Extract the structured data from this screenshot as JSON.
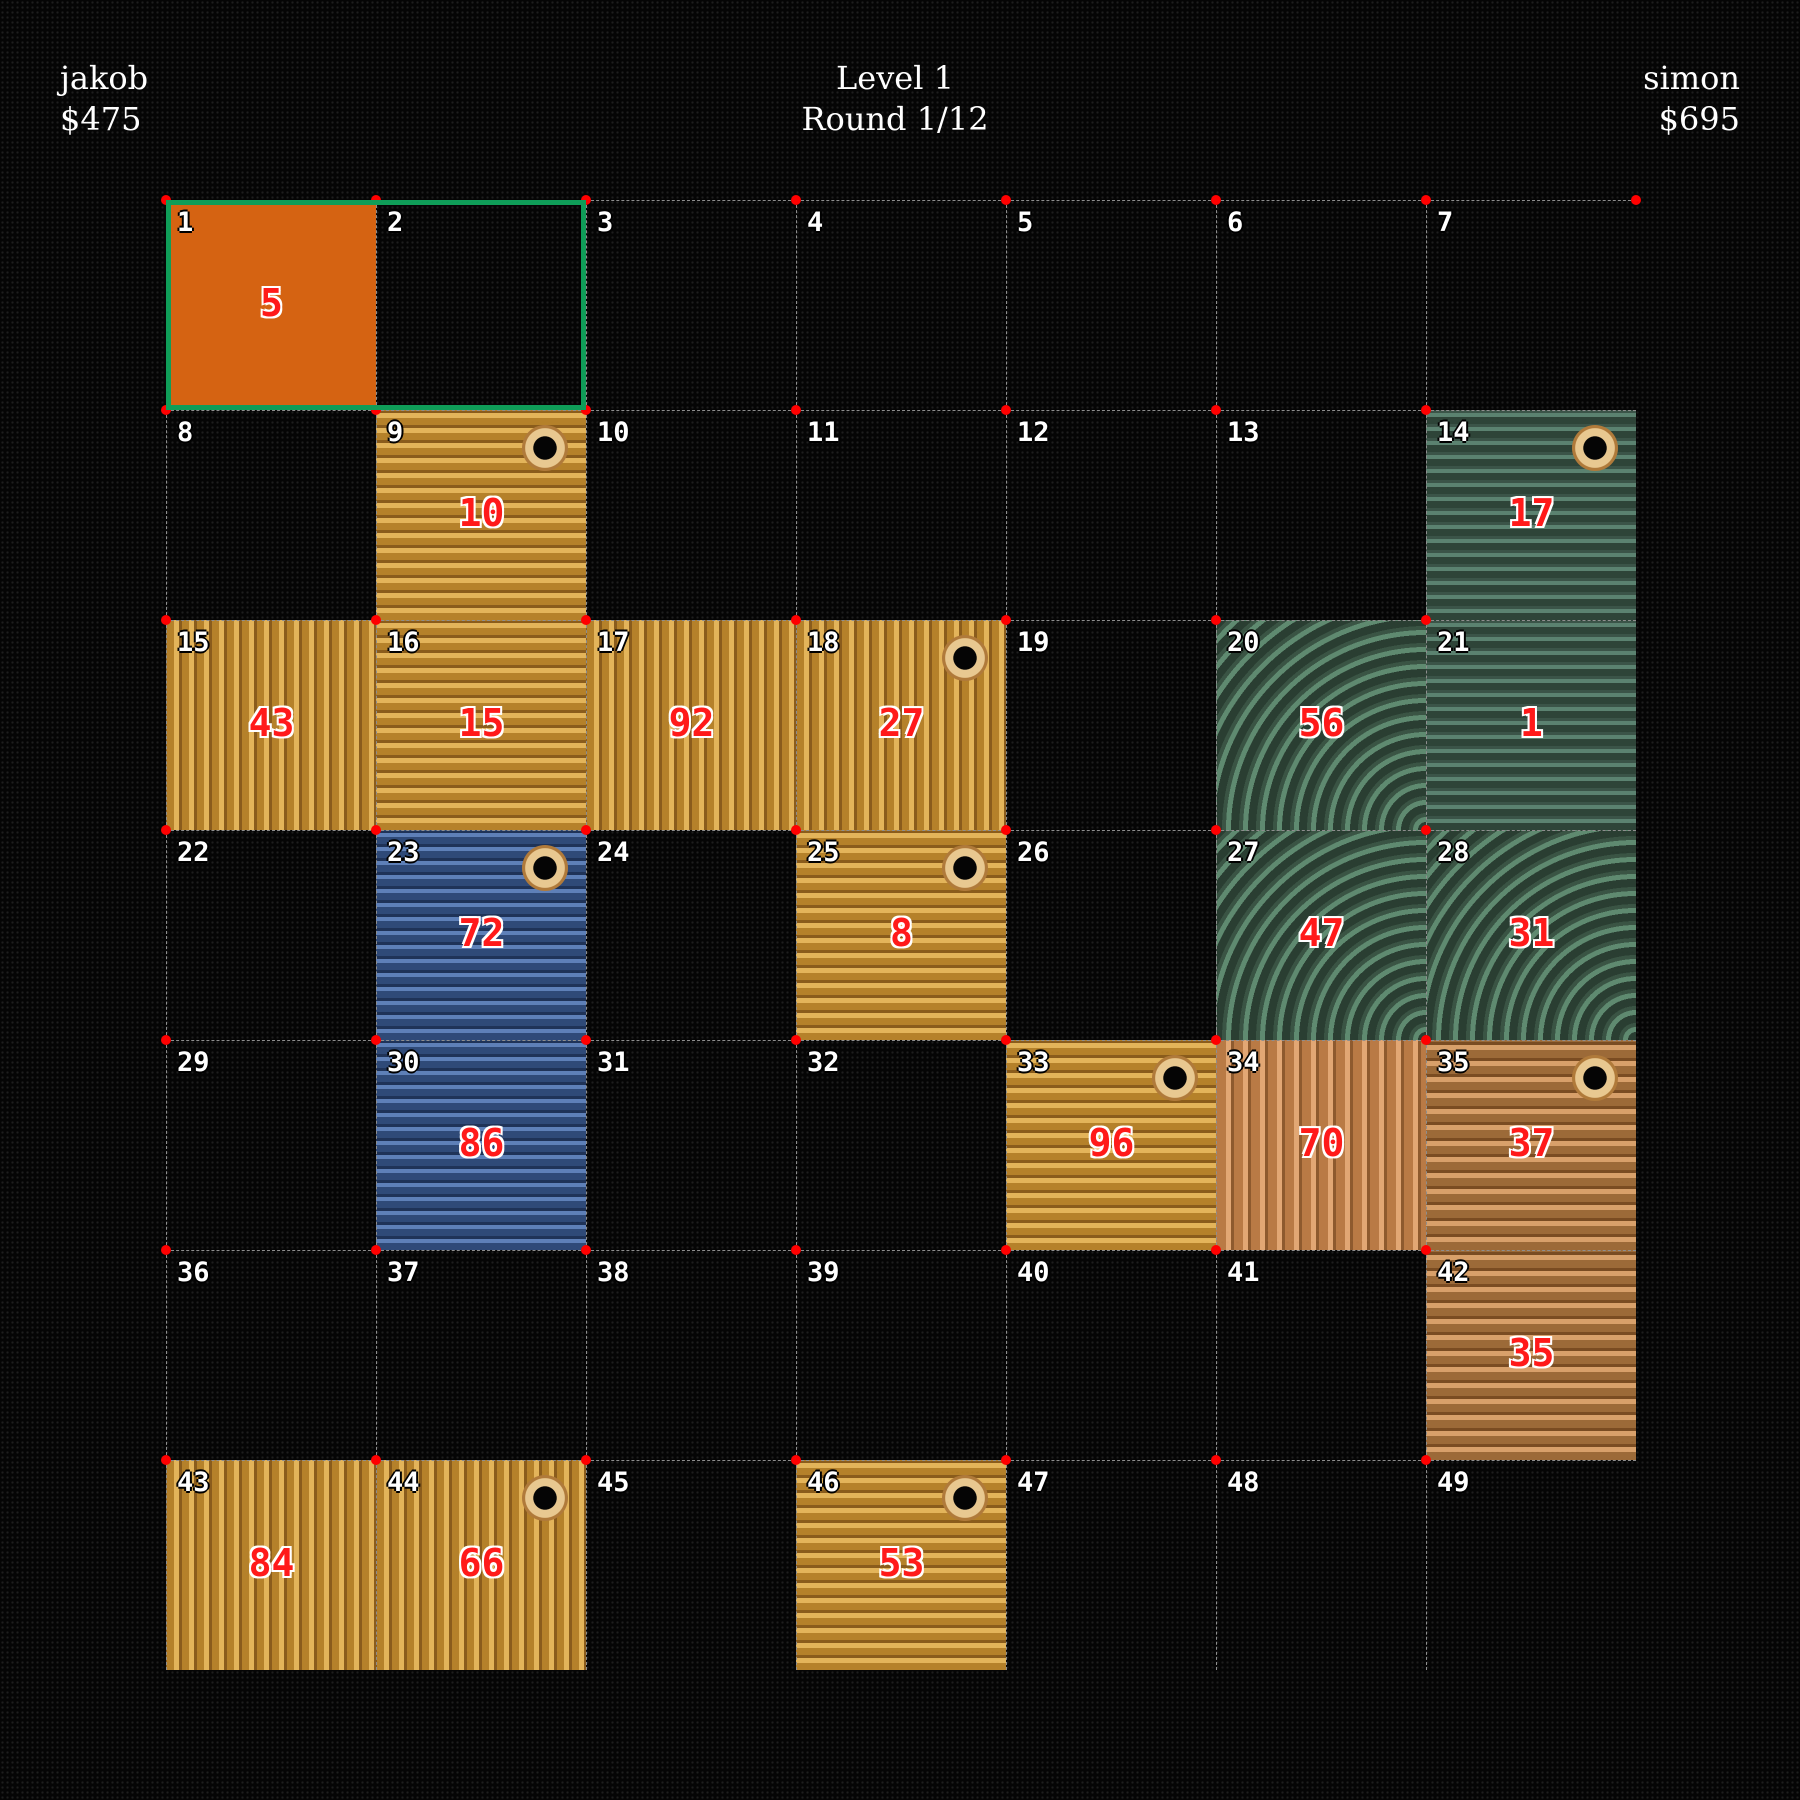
{
  "players": [
    {
      "name": "jakob",
      "money": "$475"
    },
    {
      "name": "simon",
      "money": "$695"
    }
  ],
  "level_label": "Level 1",
  "round_label": "Round 1/12",
  "board": {
    "columns": 7,
    "rows": 7,
    "selected_cells": [
      1,
      2
    ],
    "cells": [
      {
        "index": "1",
        "value": "5",
        "texture": "orange"
      },
      {
        "index": "2",
        "value": "",
        "texture": ""
      },
      {
        "index": "3",
        "value": "",
        "texture": ""
      },
      {
        "index": "4",
        "value": "",
        "texture": ""
      },
      {
        "index": "5",
        "value": "",
        "texture": ""
      },
      {
        "index": "6",
        "value": "",
        "texture": ""
      },
      {
        "index": "7",
        "value": "",
        "texture": ""
      },
      {
        "index": "8",
        "value": "",
        "texture": ""
      },
      {
        "index": "9",
        "value": "10",
        "texture": "goldv"
      },
      {
        "index": "10",
        "value": "",
        "texture": ""
      },
      {
        "index": "11",
        "value": "",
        "texture": ""
      },
      {
        "index": "12",
        "value": "",
        "texture": ""
      },
      {
        "index": "13",
        "value": "",
        "texture": ""
      },
      {
        "index": "14",
        "value": "17",
        "texture": "greenv"
      },
      {
        "index": "15",
        "value": "43",
        "texture": "gold"
      },
      {
        "index": "16",
        "value": "15",
        "texture": "goldv"
      },
      {
        "index": "17",
        "value": "92",
        "texture": "gold"
      },
      {
        "index": "18",
        "value": "27",
        "texture": "gold"
      },
      {
        "index": "19",
        "value": "",
        "texture": ""
      },
      {
        "index": "20",
        "value": "56",
        "texture": "green"
      },
      {
        "index": "21",
        "value": "1",
        "texture": "greenv"
      },
      {
        "index": "22",
        "value": "",
        "texture": ""
      },
      {
        "index": "23",
        "value": "72",
        "texture": "blue"
      },
      {
        "index": "24",
        "value": "",
        "texture": ""
      },
      {
        "index": "25",
        "value": "8",
        "texture": "goldv"
      },
      {
        "index": "26",
        "value": "",
        "texture": ""
      },
      {
        "index": "27",
        "value": "47",
        "texture": "green"
      },
      {
        "index": "28",
        "value": "31",
        "texture": "green"
      },
      {
        "index": "29",
        "value": "",
        "texture": ""
      },
      {
        "index": "30",
        "value": "86",
        "texture": "blue"
      },
      {
        "index": "31",
        "value": "",
        "texture": ""
      },
      {
        "index": "32",
        "value": "",
        "texture": ""
      },
      {
        "index": "33",
        "value": "96",
        "texture": "goldv"
      },
      {
        "index": "34",
        "value": "70",
        "texture": "tanh"
      },
      {
        "index": "35",
        "value": "37",
        "texture": "tan"
      },
      {
        "index": "36",
        "value": "",
        "texture": ""
      },
      {
        "index": "37",
        "value": "",
        "texture": ""
      },
      {
        "index": "38",
        "value": "",
        "texture": ""
      },
      {
        "index": "39",
        "value": "",
        "texture": ""
      },
      {
        "index": "40",
        "value": "",
        "texture": ""
      },
      {
        "index": "41",
        "value": "",
        "texture": ""
      },
      {
        "index": "42",
        "value": "35",
        "texture": "tan"
      },
      {
        "index": "43",
        "value": "84",
        "texture": "gold"
      },
      {
        "index": "44",
        "value": "66",
        "texture": "gold"
      },
      {
        "index": "45",
        "value": "",
        "texture": ""
      },
      {
        "index": "46",
        "value": "53",
        "texture": "goldv"
      },
      {
        "index": "47",
        "value": "",
        "texture": ""
      },
      {
        "index": "48",
        "value": "",
        "texture": ""
      },
      {
        "index": "49",
        "value": "",
        "texture": ""
      }
    ],
    "eye_cells": [
      "9",
      "14",
      "18",
      "23",
      "25",
      "33",
      "35",
      "44",
      "46"
    ]
  },
  "colors": {
    "selection_border": "#0f9d58",
    "selected_fill": "#d56312",
    "value_text": "#ff1a1a",
    "corner_dot": "#ff0000",
    "grid_line": "#8e8e8e"
  }
}
